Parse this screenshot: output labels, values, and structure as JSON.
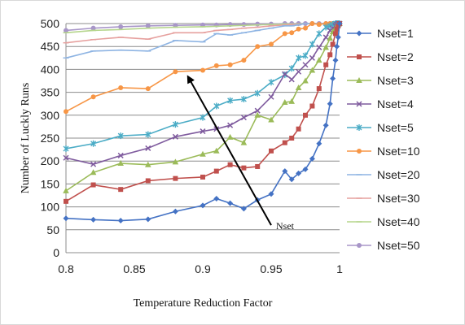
{
  "chart_data": {
    "type": "line",
    "xlabel": "Temperature Reduction Factor",
    "ylabel": "Number of Luckly Runs",
    "xlim": [
      0.8,
      1.0
    ],
    "ylim": [
      0,
      500
    ],
    "xticks": [
      0.8,
      0.85,
      0.9,
      0.95,
      1
    ],
    "xtick_labels": [
      "0.8",
      "0.85",
      "0.9",
      "0.95",
      "1"
    ],
    "yticks": [
      0,
      50,
      100,
      150,
      200,
      250,
      300,
      350,
      400,
      450,
      500
    ],
    "ytick_labels": [
      "0",
      "50",
      "100",
      "150",
      "200",
      "250",
      "300",
      "350",
      "400",
      "450",
      "500"
    ],
    "grid": "horizontal",
    "legend": "right",
    "annotation": {
      "text": "Nset",
      "arrow_from": [
        0.95,
        60
      ],
      "arrow_to": [
        0.89,
        380
      ]
    },
    "series": [
      {
        "name": "Nset=1",
        "color": "#4472C4",
        "marker": "diamond",
        "x": [
          0.8,
          0.82,
          0.84,
          0.86,
          0.88,
          0.9,
          0.91,
          0.92,
          0.93,
          0.94,
          0.95,
          0.96,
          0.965,
          0.97,
          0.975,
          0.98,
          0.985,
          0.99,
          0.993,
          0.995,
          0.997,
          0.998,
          0.999,
          1.0
        ],
        "y": [
          75,
          72,
          70,
          73,
          90,
          103,
          118,
          108,
          96,
          115,
          128,
          178,
          160,
          173,
          182,
          205,
          238,
          278,
          325,
          380,
          420,
          450,
          470,
          500
        ]
      },
      {
        "name": "Nset=2",
        "color": "#C0504D",
        "marker": "square",
        "x": [
          0.8,
          0.82,
          0.84,
          0.86,
          0.88,
          0.9,
          0.91,
          0.92,
          0.93,
          0.94,
          0.95,
          0.96,
          0.965,
          0.97,
          0.975,
          0.98,
          0.985,
          0.99,
          0.993,
          0.995,
          0.997,
          0.998,
          0.999,
          1.0
        ],
        "y": [
          112,
          148,
          138,
          157,
          162,
          165,
          178,
          192,
          185,
          188,
          222,
          240,
          250,
          270,
          300,
          320,
          358,
          410,
          432,
          455,
          478,
          488,
          495,
          500
        ]
      },
      {
        "name": "Nset=3",
        "color": "#9BBB59",
        "marker": "triangle",
        "x": [
          0.8,
          0.82,
          0.84,
          0.86,
          0.88,
          0.9,
          0.91,
          0.92,
          0.93,
          0.94,
          0.95,
          0.96,
          0.965,
          0.97,
          0.975,
          0.98,
          0.985,
          0.99,
          0.993,
          0.995,
          0.997,
          0.998,
          0.999,
          1.0
        ],
        "y": [
          135,
          175,
          195,
          192,
          198,
          215,
          222,
          252,
          240,
          300,
          290,
          328,
          330,
          360,
          375,
          398,
          420,
          448,
          468,
          482,
          490,
          495,
          498,
          500
        ]
      },
      {
        "name": "Nset=4",
        "color": "#7F5B9E",
        "marker": "x",
        "x": [
          0.8,
          0.82,
          0.84,
          0.86,
          0.88,
          0.9,
          0.91,
          0.92,
          0.93,
          0.94,
          0.95,
          0.96,
          0.965,
          0.97,
          0.975,
          0.98,
          0.985,
          0.99,
          0.993,
          0.995,
          0.997,
          0.998,
          0.999,
          1.0
        ],
        "y": [
          207,
          193,
          212,
          228,
          253,
          265,
          270,
          278,
          295,
          310,
          340,
          390,
          378,
          395,
          410,
          425,
          448,
          470,
          485,
          490,
          495,
          498,
          500,
          500
        ]
      },
      {
        "name": "Nset=5",
        "color": "#4BACC6",
        "marker": "star",
        "x": [
          0.8,
          0.82,
          0.84,
          0.86,
          0.88,
          0.9,
          0.91,
          0.92,
          0.93,
          0.94,
          0.95,
          0.96,
          0.965,
          0.97,
          0.975,
          0.98,
          0.985,
          0.99,
          0.993,
          0.995,
          0.997,
          0.998,
          0.999,
          1.0
        ],
        "y": [
          227,
          238,
          255,
          258,
          280,
          295,
          320,
          332,
          335,
          348,
          372,
          388,
          402,
          425,
          430,
          455,
          478,
          492,
          495,
          498,
          500,
          500,
          500,
          500
        ]
      },
      {
        "name": "Nset=10",
        "color": "#F79646",
        "marker": "circle",
        "x": [
          0.8,
          0.82,
          0.84,
          0.86,
          0.88,
          0.9,
          0.91,
          0.92,
          0.93,
          0.94,
          0.95,
          0.96,
          0.965,
          0.97,
          0.975,
          0.98,
          0.985,
          0.99,
          0.993,
          0.995,
          0.997,
          0.998,
          0.999,
          1.0
        ],
        "y": [
          308,
          340,
          360,
          358,
          395,
          398,
          408,
          410,
          420,
          450,
          455,
          478,
          480,
          488,
          490,
          500,
          498,
          500,
          500,
          500,
          500,
          500,
          500,
          500
        ]
      },
      {
        "name": "Nset=20",
        "color": "#8EB4E3",
        "marker": "dash",
        "x": [
          0.8,
          0.82,
          0.84,
          0.86,
          0.88,
          0.9,
          0.91,
          0.92,
          0.93,
          0.94,
          0.95,
          0.96,
          0.965,
          0.97,
          0.975,
          0.98,
          0.985,
          0.99,
          0.993,
          0.995,
          0.997,
          0.998,
          0.999,
          1.0
        ],
        "y": [
          425,
          440,
          442,
          440,
          463,
          460,
          478,
          475,
          480,
          485,
          490,
          495,
          495,
          497,
          500,
          500,
          500,
          500,
          500,
          500,
          500,
          500,
          500,
          500
        ]
      },
      {
        "name": "Nset=30",
        "color": "#E6A09E",
        "marker": "dash",
        "x": [
          0.8,
          0.82,
          0.84,
          0.86,
          0.88,
          0.9,
          0.91,
          0.92,
          0.93,
          0.94,
          0.95,
          0.96,
          0.965,
          0.97,
          0.975,
          0.98,
          0.985,
          0.99,
          0.993,
          0.995,
          0.997,
          0.998,
          0.999,
          1.0
        ],
        "y": [
          458,
          465,
          470,
          466,
          480,
          480,
          485,
          487,
          490,
          492,
          495,
          497,
          498,
          498,
          500,
          500,
          500,
          500,
          500,
          500,
          500,
          500,
          500,
          500
        ]
      },
      {
        "name": "Nset=40",
        "color": "#B5D58C",
        "marker": "dash",
        "x": [
          0.8,
          0.82,
          0.84,
          0.86,
          0.88,
          0.9,
          0.91,
          0.92,
          0.93,
          0.94,
          0.95,
          0.96,
          0.965,
          0.97,
          0.975,
          0.98,
          0.985,
          0.99,
          0.993,
          0.995,
          0.997,
          0.998,
          0.999,
          1.0
        ],
        "y": [
          480,
          485,
          487,
          490,
          492,
          493,
          494,
          495,
          496,
          497,
          498,
          499,
          499,
          499,
          500,
          500,
          500,
          500,
          500,
          500,
          500,
          500,
          500,
          500
        ]
      },
      {
        "name": "Nset=50",
        "color": "#A896C8",
        "marker": "circle",
        "x": [
          0.8,
          0.82,
          0.84,
          0.86,
          0.88,
          0.9,
          0.91,
          0.92,
          0.93,
          0.94,
          0.95,
          0.96,
          0.965,
          0.97,
          0.975,
          0.98,
          0.985,
          0.99,
          0.993,
          0.995,
          0.997,
          0.998,
          0.999,
          1.0
        ],
        "y": [
          485,
          490,
          493,
          495,
          496,
          497,
          497,
          498,
          498,
          499,
          499,
          500,
          500,
          500,
          500,
          500,
          500,
          500,
          500,
          500,
          500,
          500,
          500,
          500
        ]
      }
    ]
  }
}
